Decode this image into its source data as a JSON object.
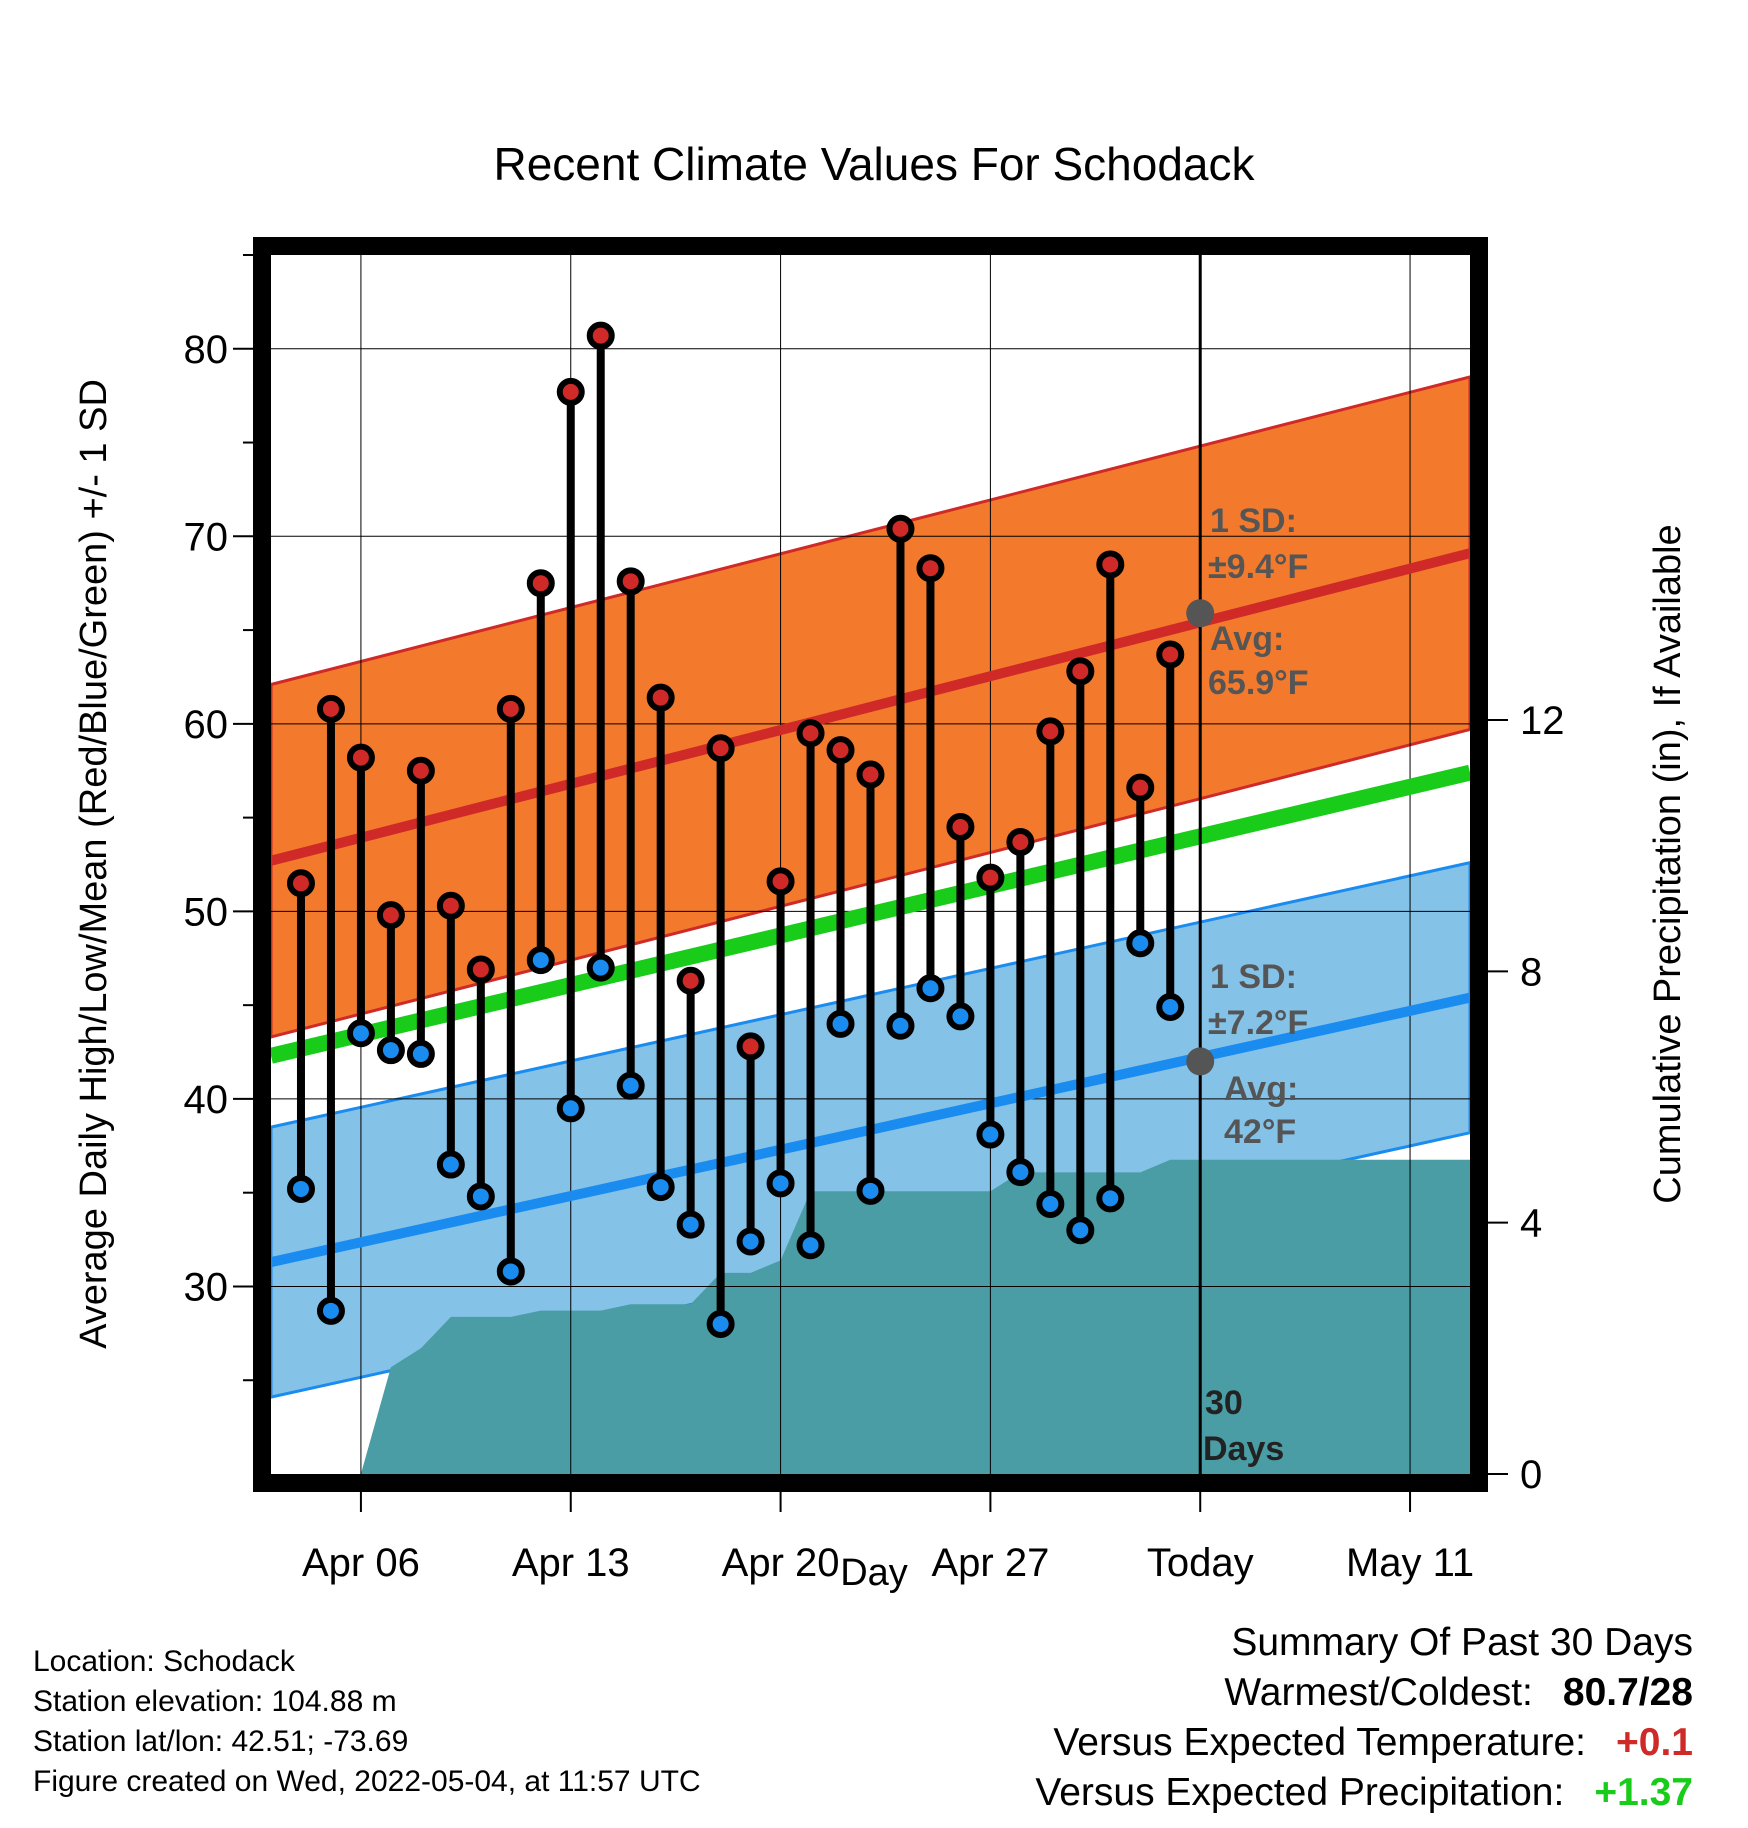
{
  "chart_data": {
    "type": "line",
    "title": "Recent Climate Values For Schodack",
    "xlabel": "Day",
    "ylabel": "Average Daily High/Low/Mean (Red/Blue/Green) +/- 1 SD",
    "y2label": "Cumulative Precipitation (in), If Available",
    "x_ticks": [
      "Apr 06",
      "Apr 13",
      "Apr 20",
      "Apr 27",
      "Today",
      "May 11"
    ],
    "x_range": [
      "Apr 03",
      "May 12"
    ],
    "ylim": [
      20,
      85
    ],
    "y_ticks": [
      30,
      40,
      50,
      60,
      70,
      80
    ],
    "y2lim": [
      0,
      19.4
    ],
    "y2_ticks": [
      0,
      4,
      8,
      12
    ],
    "grid": true,
    "today": "May 04",
    "days": [
      "Apr 04",
      "Apr 05",
      "Apr 06",
      "Apr 07",
      "Apr 08",
      "Apr 09",
      "Apr 10",
      "Apr 11",
      "Apr 12",
      "Apr 13",
      "Apr 14",
      "Apr 15",
      "Apr 16",
      "Apr 17",
      "Apr 18",
      "Apr 19",
      "Apr 20",
      "Apr 21",
      "Apr 22",
      "Apr 23",
      "Apr 24",
      "Apr 25",
      "Apr 26",
      "Apr 27",
      "Apr 28",
      "Apr 29",
      "Apr 30",
      "May 01",
      "May 02",
      "May 03"
    ],
    "observed_high": [
      51.5,
      60.8,
      58.2,
      49.8,
      57.5,
      50.3,
      46.9,
      60.8,
      67.5,
      77.7,
      80.7,
      67.6,
      61.4,
      46.3,
      58.7,
      42.8,
      51.6,
      59.5,
      58.6,
      57.3,
      70.4,
      68.3,
      54.5,
      51.8,
      53.7,
      59.6,
      62.8,
      68.5,
      56.6,
      63.7
    ],
    "observed_low": [
      35.2,
      28.7,
      43.5,
      42.6,
      42.4,
      36.5,
      34.8,
      30.8,
      47.4,
      39.5,
      47.0,
      40.7,
      35.3,
      33.3,
      28.0,
      32.4,
      35.5,
      32.2,
      44.0,
      35.1,
      43.9,
      45.9,
      44.4,
      38.1,
      36.1,
      34.4,
      33.0,
      34.7,
      48.3,
      44.9
    ],
    "series": [
      {
        "name": "High",
        "color": "#cf2a27",
        "band_color": "#f37a2d",
        "x_days": [
          0,
          40
        ],
        "mean": [
          52.7,
          69.1
        ],
        "sd": 9.4
      },
      {
        "name": "Low",
        "color": "#1a8cf0",
        "band_color": "#85c2e8",
        "x_days": [
          0,
          40
        ],
        "mean": [
          31.3,
          45.4
        ],
        "sd": 7.2
      },
      {
        "name": "Mean",
        "color": "#19cc19",
        "x_days": [
          0,
          40
        ],
        "mean": [
          42.3,
          57.4
        ]
      },
      {
        "name": "Cumulative Precipitation",
        "color": "#4a9ca5",
        "x_days": [
          3,
          4,
          5,
          6,
          7,
          8,
          9,
          10,
          11,
          12,
          13,
          14,
          15,
          16,
          17,
          18,
          19,
          20,
          21,
          22,
          23,
          24,
          25,
          26,
          27,
          28,
          29,
          30,
          31,
          32,
          40
        ],
        "values": [
          0,
          1.7,
          2.0,
          2.5,
          2.5,
          2.5,
          2.6,
          2.6,
          2.6,
          2.7,
          2.7,
          2.7,
          3.2,
          3.2,
          3.4,
          4.5,
          4.5,
          4.5,
          4.5,
          4.5,
          4.5,
          4.5,
          4.8,
          4.8,
          4.8,
          4.8,
          4.8,
          5.0,
          5.0,
          5.0,
          5.0
        ]
      }
    ]
  },
  "annotations": {
    "high_sd_label": "1 SD:",
    "high_sd_value": "±9.4°F",
    "high_avg_label": "Avg:",
    "high_avg_value": "65.9°F",
    "low_sd_label": "1 SD:",
    "low_sd_value": "±7.2°F",
    "low_avg_label": "Avg:",
    "low_avg_value": "42°F",
    "days_label_1": "30",
    "days_label_2": "Days"
  },
  "station": {
    "location": "Location: Schodack",
    "elevation": "Station elevation: 104.88 m",
    "latlon": "Station lat/lon: 42.51; -73.69",
    "created": "Figure created on Wed, 2022-05-04, at 11:57 UTC"
  },
  "summary": {
    "title": "Summary Of Past 30 Days",
    "warm_cold_label": "Warmest/Coldest:",
    "warm_cold_value": "80.7/28",
    "temp_label": "Versus Expected Temperature:",
    "temp_value": "+0.1",
    "temp_color": "#cf2a27",
    "precip_label": "Versus Expected Precipitation:",
    "precip_value": "+1.37",
    "precip_color": "#19cc19"
  }
}
